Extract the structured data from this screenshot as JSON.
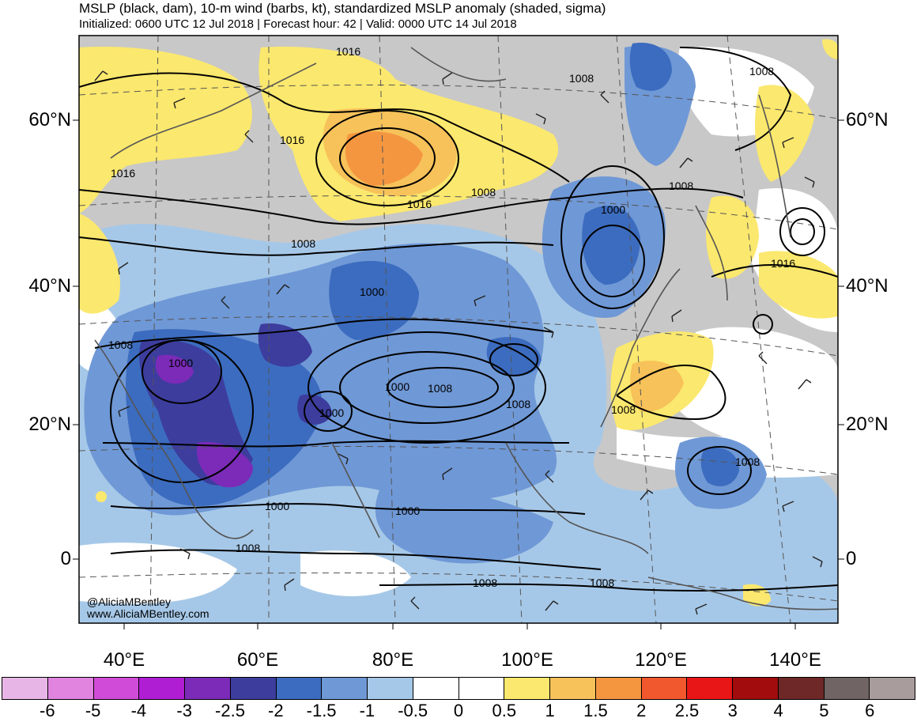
{
  "title": "MSLP (black, dam), 10-m wind (barbs, kt), standardized MSLP anomaly (shaded, sigma)",
  "subtitle": "Initialized: 0600 UTC 12 Jul 2018 | Forecast hour: 42 | Valid: 0000 UTC 14 Jul 2018",
  "lat_labels": [
    "60°N",
    "40°N",
    "20°N",
    "0"
  ],
  "lon_labels": [
    "40°E",
    "60°E",
    "80°E",
    "100°E",
    "120°E",
    "140°E"
  ],
  "isobar_labels": [
    "1016",
    "1008",
    "1008",
    "1016",
    "1016",
    "1008",
    "1016",
    "1008",
    "1000",
    "1008",
    "1016",
    "1008",
    "1000",
    "1000",
    "1000",
    "1000",
    "1008",
    "1008",
    "1008",
    "1008",
    "1000",
    "1000",
    "1008",
    "1008",
    "1008"
  ],
  "credit": {
    "handle": "@AliciaMBentley",
    "website": "www.AliciaMBentley.com"
  },
  "colorbar": {
    "colors": [
      "#e8b6e6",
      "#e084e0",
      "#d04cd8",
      "#b01ed4",
      "#7b2bb8",
      "#3d3d9e",
      "#3c6cbf",
      "#6f98d6",
      "#a6c8e8",
      "#ffffff",
      "#ffffff",
      "#fbe86e",
      "#f7c25a",
      "#f49640",
      "#f2582e",
      "#e81616",
      "#a20c0c",
      "#6e2828",
      "#706464",
      "#a89c9c"
    ],
    "ticks": [
      "-6",
      "-5",
      "-4",
      "-3",
      "-2.5",
      "-2",
      "-1.5",
      "-1",
      "-0.5",
      "0",
      "0.5",
      "1",
      "1.5",
      "2",
      "2.5",
      "3",
      "4",
      "5",
      "6"
    ]
  },
  "colors": {
    "positive_anomaly": "#fbe86e",
    "strong_positive": "#f49640",
    "neutral": "#c8c8c8",
    "negative_light": "#a6c8e8",
    "negative_mid": "#6f98d6",
    "negative_strong": "#3c6cbf",
    "negative_extreme": "#7b2bb8"
  }
}
